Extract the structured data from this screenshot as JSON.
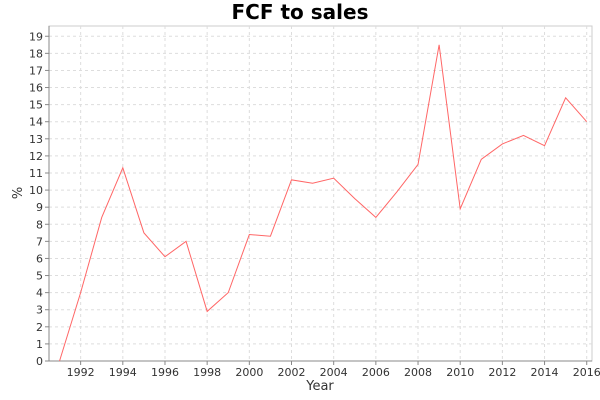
{
  "chart_data": {
    "type": "line",
    "title": "FCF to sales",
    "xlabel": "Year",
    "ylabel": "%",
    "xlim": [
      1990.5,
      2016.25
    ],
    "ylim": [
      0,
      19.6
    ],
    "x_ticks": [
      1992,
      1994,
      1996,
      1998,
      2000,
      2002,
      2004,
      2006,
      2008,
      2010,
      2012,
      2014,
      2016
    ],
    "y_ticks": [
      0,
      1,
      2,
      3,
      4,
      5,
      6,
      7,
      8,
      9,
      10,
      11,
      12,
      13,
      14,
      15,
      16,
      17,
      18,
      19
    ],
    "grid": true,
    "legend": "none",
    "series_color": "#ff6666",
    "series": [
      {
        "x": [
          1991,
          1992,
          1993,
          1994,
          1995,
          1996,
          1997,
          1998,
          1999,
          2000,
          2001,
          2002,
          2003,
          2004,
          2005,
          2006,
          2007,
          2008,
          2009,
          2010,
          2011,
          2012,
          2013,
          2014,
          2015,
          2016
        ],
        "y": [
          0.0,
          4.0,
          8.4,
          11.3,
          7.5,
          6.1,
          7.0,
          2.9,
          4.0,
          7.4,
          7.3,
          10.6,
          10.4,
          10.7,
          9.5,
          8.4,
          9.9,
          11.5,
          18.5,
          8.9,
          11.8,
          12.7,
          13.2,
          12.6,
          15.4,
          14.0
        ]
      }
    ]
  }
}
